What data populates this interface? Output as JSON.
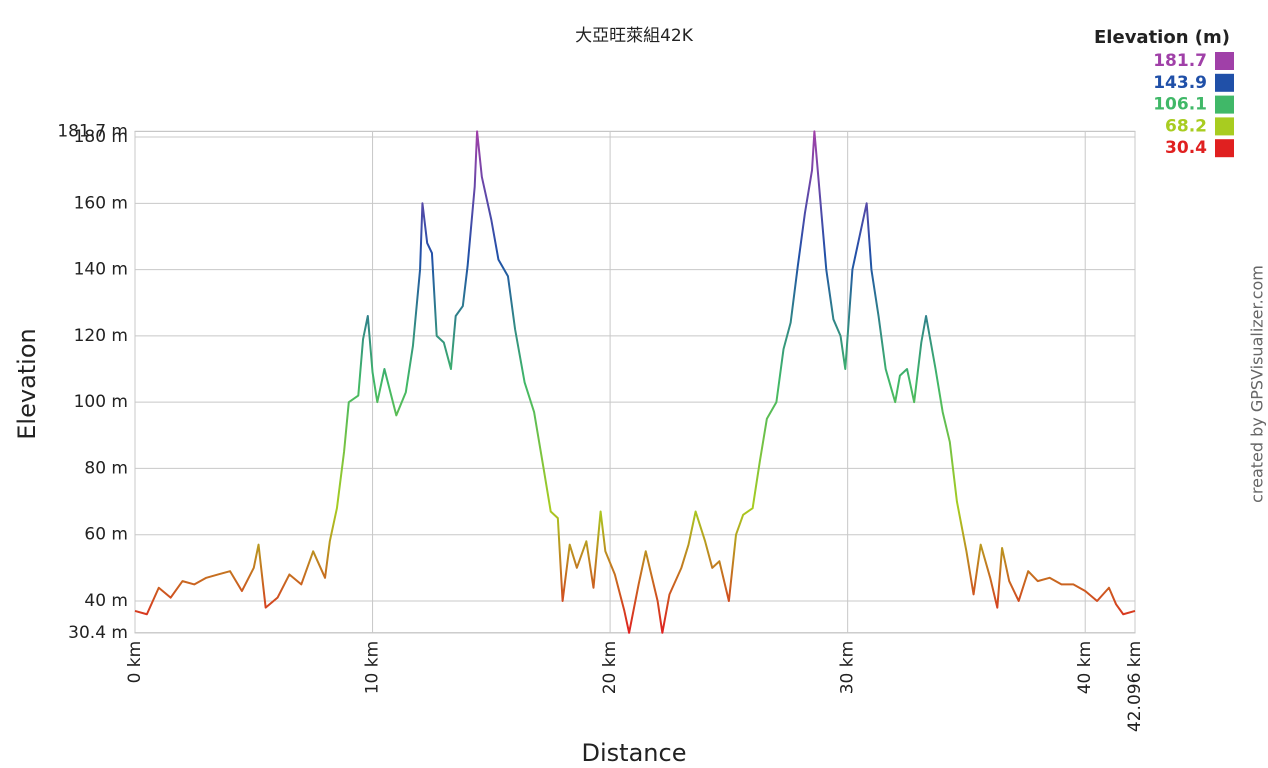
{
  "chart_data": {
    "type": "line",
    "title": "大亞旺萊組42K",
    "xlabel": "Distance",
    "ylabel": "Elevation",
    "credit": "created by GPSVisualizer.com",
    "xlim": [
      0,
      42.096
    ],
    "ylim": [
      30.4,
      181.7
    ],
    "xticks": [
      {
        "value": 0,
        "label": "0 km"
      },
      {
        "value": 10,
        "label": "10 km"
      },
      {
        "value": 20,
        "label": "20 km"
      },
      {
        "value": 30,
        "label": "30 km"
      },
      {
        "value": 40,
        "label": "40 km"
      },
      {
        "value": 42.096,
        "label": "42.096 km"
      }
    ],
    "yticks": [
      {
        "value": 30.4,
        "label": "30.4 m"
      },
      {
        "value": 40,
        "label": "40 m"
      },
      {
        "value": 60,
        "label": "60 m"
      },
      {
        "value": 80,
        "label": "80 m"
      },
      {
        "value": 100,
        "label": "100 m"
      },
      {
        "value": 120,
        "label": "120 m"
      },
      {
        "value": 140,
        "label": "140 m"
      },
      {
        "value": 160,
        "label": "160 m"
      },
      {
        "value": 180,
        "label": "180 m"
      },
      {
        "value": 181.7,
        "label": "181.7 m"
      }
    ],
    "grid": true,
    "legend": {
      "title": "Elevation (m)",
      "entries": [
        {
          "value": 181.7,
          "color": "#a040a8"
        },
        {
          "value": 143.9,
          "color": "#2050a8"
        },
        {
          "value": 106.1,
          "color": "#40b868"
        },
        {
          "value": 68.2,
          "color": "#a8cc20"
        },
        {
          "value": 30.4,
          "color": "#e02020"
        }
      ]
    },
    "x": [
      0,
      0.5,
      1,
      1.5,
      2,
      2.5,
      3,
      3.5,
      4,
      4.5,
      5,
      5.2,
      5.5,
      6,
      6.5,
      7,
      7.5,
      8,
      8.2,
      8.5,
      8.8,
      9,
      9.4,
      9.6,
      9.8,
      10,
      10.2,
      10.5,
      11,
      11.4,
      11.7,
      12,
      12.1,
      12.3,
      12.5,
      12.7,
      13,
      13.3,
      13.5,
      13.8,
      14,
      14.3,
      14.4,
      14.6,
      15,
      15.3,
      15.7,
      16,
      16.4,
      16.8,
      17.2,
      17.5,
      17.8,
      18,
      18.3,
      18.6,
      19,
      19.3,
      19.6,
      19.8,
      20.2,
      20.6,
      20.8,
      21.2,
      21.5,
      22,
      22.2,
      22.5,
      23,
      23.3,
      23.6,
      24,
      24.3,
      24.6,
      25,
      25.3,
      25.6,
      26,
      26.3,
      26.6,
      27,
      27.3,
      27.6,
      27.9,
      28.2,
      28.5,
      28.6,
      28.8,
      29.1,
      29.4,
      29.7,
      29.9,
      30.2,
      30.5,
      30.8,
      31,
      31.3,
      31.6,
      32,
      32.2,
      32.5,
      32.8,
      33.1,
      33.3,
      33.7,
      34,
      34.3,
      34.6,
      35,
      35.3,
      35.6,
      36,
      36.3,
      36.5,
      36.8,
      37.2,
      37.6,
      38,
      38.5,
      39,
      39.5,
      40,
      40.5,
      41,
      41.3,
      41.6,
      42.096
    ],
    "values": [
      37,
      36,
      44,
      41,
      46,
      45,
      47,
      48,
      49,
      43,
      50,
      57,
      38,
      41,
      48,
      45,
      55,
      47,
      58,
      68,
      85,
      100,
      102,
      119,
      126,
      109,
      100,
      110,
      96,
      103,
      117,
      140,
      160,
      148,
      145,
      120,
      118,
      110,
      126,
      129,
      141,
      165,
      181.7,
      168,
      155,
      143,
      138,
      122,
      106,
      97,
      80,
      67,
      65,
      40,
      57,
      50,
      58,
      44,
      67,
      55,
      48,
      37,
      30.4,
      45,
      55,
      40,
      30.4,
      42,
      50,
      57,
      67,
      58,
      50,
      52,
      40,
      60,
      66,
      68,
      82,
      95,
      100,
      116,
      124,
      141,
      157,
      170,
      181.7,
      165,
      140,
      125,
      120,
      110,
      140,
      150,
      160,
      140,
      126,
      110,
      100,
      108,
      110,
      100,
      118,
      126,
      110,
      97,
      88,
      70,
      55,
      42,
      57,
      47,
      38,
      56,
      46,
      40,
      49,
      46,
      47,
      45,
      45,
      43,
      40,
      44,
      39,
      36,
      37
    ]
  }
}
